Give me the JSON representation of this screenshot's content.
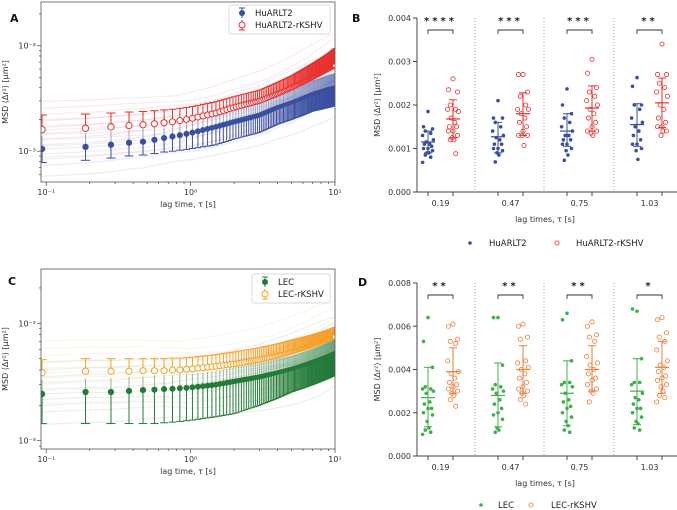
{
  "chart_data": [
    {
      "panel": "A",
      "type": "line",
      "xlabel": "lag time, τ [s]",
      "ylabel": "MSD ⟨Δr²⟩ [μm²]",
      "xscale": "log",
      "yscale": "log",
      "xlim": [
        0.092,
        10
      ],
      "ylim": [
        0.00051,
        0.026
      ],
      "xticks": [
        {
          "v": 0.1,
          "label": "10⁻¹"
        },
        {
          "v": 1,
          "label": "10⁰"
        },
        {
          "v": 10,
          "label": "10¹"
        }
      ],
      "yticks": [
        {
          "v": 0.001,
          "label": "10⁻³"
        },
        {
          "v": 0.01,
          "label": "10⁻²"
        }
      ],
      "legend": "top-right",
      "x": [
        0.094,
        0.19,
        0.28,
        0.37,
        0.47,
        0.56,
        0.65,
        0.75,
        0.84,
        0.94,
        1.03,
        1.5,
        2,
        3,
        4,
        5,
        6,
        7,
        8,
        9,
        10
      ],
      "series": [
        {
          "name": "HuARLT2",
          "color": "#3a4fa0",
          "marker": "filled-circle",
          "mean": [
            0.00105,
            0.0011,
            0.00115,
            0.0012,
            0.00123,
            0.00128,
            0.00133,
            0.00138,
            0.00142,
            0.00146,
            0.0015,
            0.0017,
            0.0019,
            0.0022,
            0.0026,
            0.0029,
            0.0032,
            0.0035,
            0.0037,
            0.0039,
            0.004
          ],
          "lower": [
            0.00078,
            0.00082,
            0.00086,
            0.0009,
            0.00092,
            0.00095,
            0.00098,
            0.001,
            0.00102,
            0.00104,
            0.00106,
            0.00115,
            0.0013,
            0.0015,
            0.0018,
            0.002,
            0.0022,
            0.0024,
            0.0025,
            0.0026,
            0.0027
          ],
          "upper": [
            0.0014,
            0.00148,
            0.00155,
            0.0016,
            0.00165,
            0.0017,
            0.0018,
            0.00185,
            0.0019,
            0.00195,
            0.002,
            0.0023,
            0.0026,
            0.003,
            0.0035,
            0.0039,
            0.0043,
            0.0047,
            0.005,
            0.0053,
            0.0055
          ]
        },
        {
          "name": "HuARLT2-rKSHV",
          "color": "#e8312d",
          "marker": "open-circle",
          "mean": [
            0.0016,
            0.00165,
            0.0017,
            0.00175,
            0.00178,
            0.00182,
            0.00186,
            0.0019,
            0.00195,
            0.002,
            0.00205,
            0.0023,
            0.0026,
            0.003,
            0.0035,
            0.004,
            0.0045,
            0.005,
            0.0055,
            0.006,
            0.0065
          ],
          "lower": [
            0.0012,
            0.00124,
            0.00128,
            0.00131,
            0.00134,
            0.00137,
            0.0014,
            0.00143,
            0.00146,
            0.0015,
            0.00154,
            0.0017,
            0.0019,
            0.0022,
            0.0026,
            0.003,
            0.0034,
            0.0037,
            0.0041,
            0.0045,
            0.0049
          ],
          "upper": [
            0.0022,
            0.00225,
            0.0023,
            0.00235,
            0.00238,
            0.00242,
            0.00246,
            0.0025,
            0.00255,
            0.0026,
            0.00265,
            0.00295,
            0.0033,
            0.0038,
            0.0045,
            0.0052,
            0.006,
            0.0068,
            0.0076,
            0.0085,
            0.0095
          ]
        }
      ]
    },
    {
      "panel": "B",
      "type": "scatter",
      "xlabel": "lag times, τ [s]",
      "ylabel": "MSD ⟨Δr²⟩ [μm²]",
      "ylim": [
        0,
        0.004
      ],
      "yticks": [
        "0.000",
        "0.001",
        "0.002",
        "0.003",
        "0.004"
      ],
      "categories": [
        "0.19",
        "0.47",
        "0.75",
        "1.03"
      ],
      "significance": [
        "****",
        "***",
        "***",
        "**"
      ],
      "legend": "bottom",
      "series": [
        {
          "name": "HuARLT2",
          "color": "#3a4fa0",
          "marker": "filled-dot",
          "mean": [
            0.00115,
            0.00127,
            0.0014,
            0.00155
          ],
          "sd_low": [
            0.0009,
            0.0009,
            0.00105,
            0.00105
          ],
          "sd_high": [
            0.0014,
            0.0016,
            0.0018,
            0.00203
          ],
          "points": [
            [
              0.00185,
              0.0015,
              0.00145,
              0.0014,
              0.00135,
              0.0013,
              0.0012,
              0.00115,
              0.0011,
              0.0011,
              0.00105,
              0.001,
              0.001,
              0.00095,
              0.0009,
              0.0009,
              0.00085,
              0.0008,
              0.00068
            ],
            [
              0.0021,
              0.0017,
              0.0017,
              0.0016,
              0.0015,
              0.0014,
              0.0013,
              0.00125,
              0.0012,
              0.0011,
              0.0011,
              0.001,
              0.001,
              0.00095,
              0.0009,
              0.00085,
              0.00069
            ],
            [
              0.00237,
              0.002,
              0.0018,
              0.0017,
              0.0016,
              0.0015,
              0.0014,
              0.0013,
              0.0013,
              0.0012,
              0.0012,
              0.0011,
              0.0011,
              0.001,
              0.00095,
              0.00085,
              0.00073
            ],
            [
              0.00263,
              0.00243,
              0.002,
              0.002,
              0.0019,
              0.0017,
              0.0016,
              0.0015,
              0.0014,
              0.0013,
              0.0012,
              0.0011,
              0.0011,
              0.001,
              0.00095,
              0.00075
            ]
          ]
        },
        {
          "name": "HuARLT2-rKSHV",
          "color": "#e8312d",
          "marker": "open-circle",
          "mean": [
            0.00168,
            0.0018,
            0.00193,
            0.00205
          ],
          "sd_low": [
            0.00125,
            0.0013,
            0.0014,
            0.00148
          ],
          "sd_high": [
            0.00212,
            0.00228,
            0.00244,
            0.00262
          ],
          "points": [
            [
              0.0026,
              0.00235,
              0.0023,
              0.002,
              0.0019,
              0.0019,
              0.00185,
              0.0017,
              0.0016,
              0.0015,
              0.0015,
              0.0014,
              0.0014,
              0.0013,
              0.00125,
              0.0012,
              0.0012,
              0.00088
            ],
            [
              0.0027,
              0.0027,
              0.0023,
              0.0022,
              0.002,
              0.0019,
              0.0019,
              0.0018,
              0.0017,
              0.0016,
              0.0015,
              0.0014,
              0.0013,
              0.0013,
              0.0013,
              0.00107
            ],
            [
              0.00305,
              0.00273,
              0.0024,
              0.0023,
              0.0022,
              0.0021,
              0.002,
              0.0019,
              0.0018,
              0.0017,
              0.0016,
              0.0015,
              0.0014,
              0.0014,
              0.00135,
              0.0013
            ],
            [
              0.0034,
              0.0027,
              0.0027,
              0.0025,
              0.0024,
              0.0023,
              0.0022,
              0.002,
              0.0019,
              0.0017,
              0.0016,
              0.0015,
              0.0015,
              0.0014,
              0.0013,
              0.0014
            ]
          ]
        }
      ]
    },
    {
      "panel": "C",
      "type": "line",
      "xlabel": "lag time, τ [s]",
      "ylabel": "MSD ⟨Δr²⟩ [μm²]",
      "xscale": "log",
      "yscale": "log",
      "xlim": [
        0.092,
        10
      ],
      "ylim": [
        0.00085,
        0.029
      ],
      "xticks": [
        {
          "v": 0.1,
          "label": "10⁻¹"
        },
        {
          "v": 1,
          "label": "10⁰"
        },
        {
          "v": 10,
          "label": "10¹"
        }
      ],
      "yticks": [
        {
          "v": 0.001,
          "label": "10⁻³"
        },
        {
          "v": 0.01,
          "label": "10⁻²"
        }
      ],
      "legend": "top-right",
      "x": [
        0.094,
        0.19,
        0.28,
        0.37,
        0.47,
        0.56,
        0.65,
        0.75,
        0.84,
        0.94,
        1.03,
        1.5,
        2,
        3,
        4,
        5,
        6,
        7,
        8,
        9,
        10
      ],
      "series": [
        {
          "name": "LEC",
          "color": "#247a38",
          "marker": "filled-circle",
          "mean": [
            0.0025,
            0.0026,
            0.0026,
            0.00265,
            0.0027,
            0.00272,
            0.00275,
            0.00277,
            0.0028,
            0.00282,
            0.00285,
            0.003,
            0.0032,
            0.0035,
            0.0038,
            0.0041,
            0.0044,
            0.0047,
            0.005,
            0.0053,
            0.0056
          ],
          "lower": [
            0.0014,
            0.0014,
            0.0014,
            0.0014,
            0.0014,
            0.0014,
            0.00142,
            0.00144,
            0.00146,
            0.00148,
            0.0015,
            0.0016,
            0.0017,
            0.002,
            0.0023,
            0.0026,
            0.0028,
            0.003,
            0.0032,
            0.0034,
            0.0036
          ],
          "upper": [
            0.0033,
            0.0034,
            0.0034,
            0.0035,
            0.0035,
            0.0036,
            0.0036,
            0.0036,
            0.0037,
            0.0037,
            0.0037,
            0.0039,
            0.0042,
            0.0046,
            0.005,
            0.0053,
            0.0057,
            0.0061,
            0.0065,
            0.0069,
            0.0073
          ]
        },
        {
          "name": "LEC-rKSHV",
          "color": "#f5a02a",
          "marker": "open-circle",
          "mean": [
            0.0038,
            0.0039,
            0.0039,
            0.0039,
            0.00395,
            0.00395,
            0.00395,
            0.004,
            0.004,
            0.00405,
            0.0041,
            0.0043,
            0.0045,
            0.0049,
            0.0053,
            0.0057,
            0.0061,
            0.0065,
            0.0069,
            0.0073,
            0.0077
          ],
          "lower": [
            0.003,
            0.0031,
            0.0031,
            0.0031,
            0.0032,
            0.0032,
            0.0032,
            0.0032,
            0.0032,
            0.0032,
            0.0033,
            0.0034,
            0.0036,
            0.0039,
            0.0042,
            0.0046,
            0.0049,
            0.0052,
            0.0055,
            0.0058,
            0.0062
          ],
          "upper": [
            0.0049,
            0.005,
            0.005,
            0.005,
            0.005,
            0.005,
            0.005,
            0.00505,
            0.00505,
            0.0051,
            0.00515,
            0.0054,
            0.0057,
            0.0062,
            0.0067,
            0.0072,
            0.0076,
            0.008,
            0.0084,
            0.0088,
            0.0093
          ]
        }
      ]
    },
    {
      "panel": "D",
      "type": "scatter",
      "xlabel": "lag times, τ [s]",
      "ylabel": "MSD ⟨Δr²⟩ [μm²]",
      "ylim": [
        0,
        0.008
      ],
      "yticks": [
        "0.000",
        "0.002",
        "0.004",
        "0.006",
        "0.008"
      ],
      "categories": [
        "0.19",
        "0.47",
        "0.75",
        "1.03"
      ],
      "significance": [
        "**",
        "**",
        "**",
        "*"
      ],
      "legend": "bottom",
      "series": [
        {
          "name": "LEC",
          "color": "#3db04a",
          "marker": "filled-dot",
          "mean": [
            0.0027,
            0.0028,
            0.0029,
            0.003
          ],
          "sd_low": [
            0.00135,
            0.00135,
            0.0014,
            0.00145
          ],
          "sd_high": [
            0.0041,
            0.0043,
            0.0044,
            0.0045
          ],
          "points": [
            [
              0.0064,
              0.0053,
              0.0041,
              0.0032,
              0.0031,
              0.0031,
              0.003,
              0.0029,
              0.0025,
              0.0024,
              0.0022,
              0.0022,
              0.002,
              0.0019,
              0.0016,
              0.0013,
              0.0012,
              0.0011,
              0.001
            ],
            [
              0.0064,
              0.0064,
              0.0042,
              0.0033,
              0.0032,
              0.0031,
              0.003,
              0.0029,
              0.0026,
              0.0024,
              0.0022,
              0.002,
              0.0019,
              0.0017,
              0.0013,
              0.0012,
              0.0011
            ],
            [
              0.0066,
              0.0063,
              0.0044,
              0.0034,
              0.0034,
              0.0033,
              0.0032,
              0.0029,
              0.0026,
              0.0025,
              0.0023,
              0.0022,
              0.002,
              0.0018,
              0.0016,
              0.0014,
              0.0012,
              0.0011
            ],
            [
              0.0067,
              0.0068,
              0.0045,
              0.0034,
              0.0034,
              0.0033,
              0.0029,
              0.0027,
              0.0026,
              0.0024,
              0.0022,
              0.0022,
              0.002,
              0.0018,
              0.0016,
              0.0015,
              0.0013,
              0.0012
            ]
          ]
        },
        {
          "name": "LEC-rKSHV",
          "color": "#f07a35",
          "marker": "open-circle",
          "mean": [
            0.0039,
            0.004,
            0.004,
            0.0041
          ],
          "sd_low": [
            0.0029,
            0.0029,
            0.003,
            0.0029
          ],
          "sd_high": [
            0.005,
            0.0051,
            0.0051,
            0.0053
          ],
          "points": [
            [
              0.0061,
              0.006,
              0.0054,
              0.0053,
              0.0052,
              0.0044,
              0.0039,
              0.0038,
              0.0036,
              0.0034,
              0.0033,
              0.0032,
              0.0031,
              0.003,
              0.0029,
              0.0028,
              0.0026,
              0.0023
            ],
            [
              0.0061,
              0.006,
              0.0055,
              0.0054,
              0.0044,
              0.0043,
              0.0041,
              0.004,
              0.0038,
              0.0036,
              0.0034,
              0.0032,
              0.0031,
              0.003,
              0.0029,
              0.0028,
              0.0026,
              0.0024
            ],
            [
              0.0062,
              0.006,
              0.0056,
              0.0055,
              0.0053,
              0.0046,
              0.0043,
              0.0042,
              0.004,
              0.0038,
              0.0036,
              0.0035,
              0.0033,
              0.0031,
              0.003,
              0.0029,
              0.0025
            ],
            [
              0.0064,
              0.0063,
              0.0057,
              0.0055,
              0.0053,
              0.0049,
              0.0044,
              0.0042,
              0.0041,
              0.0039,
              0.0037,
              0.0036,
              0.0035,
              0.0033,
              0.0032,
              0.003,
              0.0028,
              0.0027,
              0.0025
            ]
          ]
        }
      ]
    }
  ]
}
